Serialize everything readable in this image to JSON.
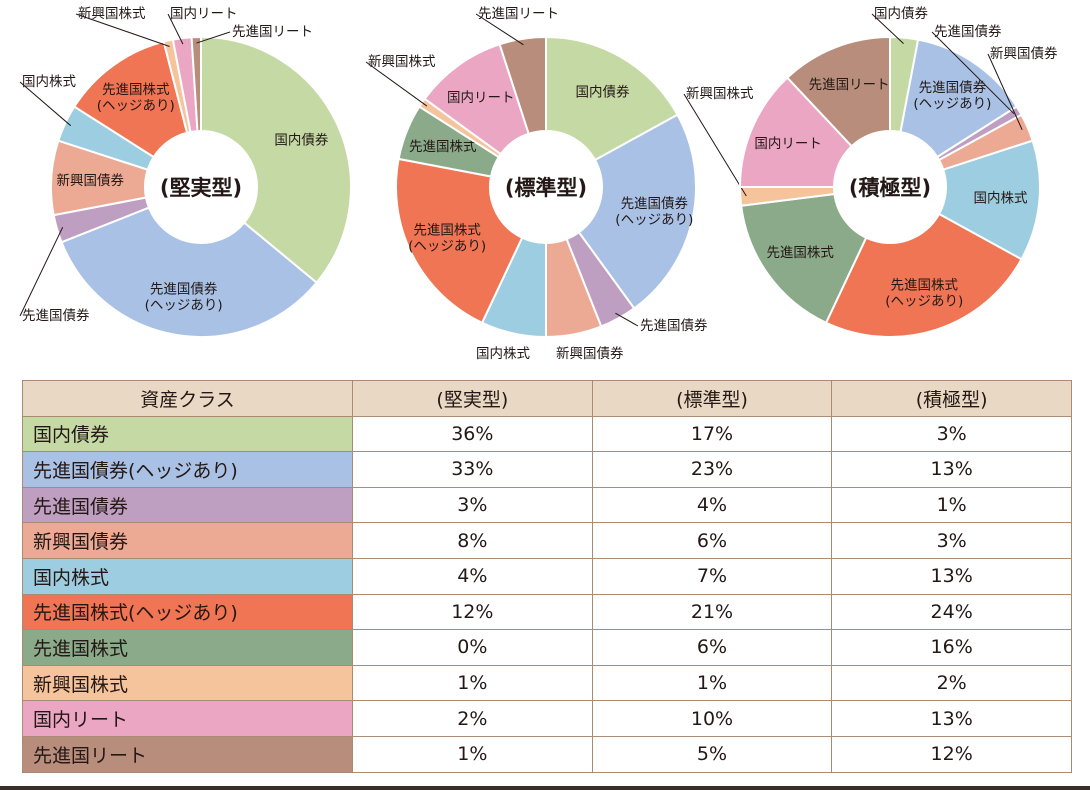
{
  "colors": {
    "国内債券": "#c5d9a4",
    "先進国債券(ヘッジあり)": "#a9c1e5",
    "先進国債券": "#bf9fc1",
    "新興国債券": "#ecaa94",
    "国内株式": "#9dcde0",
    "先進国株式(ヘッジあり)": "#f07554",
    "先進国株式": "#8aaa8a",
    "新興国株式": "#f5c49c",
    "国内リート": "#eba6c3",
    "先進国リート": "#b98d7b",
    "table_border": "#a78b72",
    "table_header_bg": "#e9d8c3"
  },
  "table": {
    "headers": [
      "資産クラス",
      "(堅実型)",
      "(標準型)",
      "(積極型)"
    ],
    "rows": [
      {
        "key": "国内債券",
        "label": "国内債券",
        "values": [
          "36%",
          "17%",
          "3%"
        ]
      },
      {
        "key": "先進国債券(ヘッジあり)",
        "label": "先進国債券(ヘッジあり)",
        "values": [
          "33%",
          "23%",
          "13%"
        ]
      },
      {
        "key": "先進国債券",
        "label": "先進国債券",
        "values": [
          "3%",
          "4%",
          "1%"
        ]
      },
      {
        "key": "新興国債券",
        "label": "新興国債券",
        "values": [
          "8%",
          "6%",
          "3%"
        ]
      },
      {
        "key": "国内株式",
        "label": "国内株式",
        "values": [
          "4%",
          "7%",
          "13%"
        ]
      },
      {
        "key": "先進国株式(ヘッジあり)",
        "label": "先進国株式(ヘッジあり)",
        "values": [
          "12%",
          "21%",
          "24%"
        ]
      },
      {
        "key": "先進国株式",
        "label": "先進国株式",
        "values": [
          "0%",
          "6%",
          "16%"
        ]
      },
      {
        "key": "新興国株式",
        "label": "新興国株式",
        "values": [
          "1%",
          "1%",
          "2%"
        ]
      },
      {
        "key": "国内リート",
        "label": "国内リート",
        "values": [
          "2%",
          "10%",
          "13%"
        ]
      },
      {
        "key": "先進国リート",
        "label": "先進国リート",
        "values": [
          "1%",
          "5%",
          "12%"
        ]
      }
    ]
  },
  "chart_data": [
    {
      "type": "pie",
      "title": "(堅実型)",
      "donut": true,
      "slices": [
        {
          "label": "国内債券",
          "value": 36
        },
        {
          "label": "先進国債券(ヘッジあり)",
          "value": 33
        },
        {
          "label": "先進国債券",
          "value": 3
        },
        {
          "label": "新興国債券",
          "value": 8
        },
        {
          "label": "国内株式",
          "value": 4
        },
        {
          "label": "先進国株式(ヘッジあり)",
          "value": 12
        },
        {
          "label": "先進国株式",
          "value": 0
        },
        {
          "label": "新興国株式",
          "value": 1
        },
        {
          "label": "国内リート",
          "value": 2
        },
        {
          "label": "先進国リート",
          "value": 1
        }
      ]
    },
    {
      "type": "pie",
      "title": "(標準型)",
      "donut": true,
      "slices": [
        {
          "label": "国内債券",
          "value": 17
        },
        {
          "label": "先進国債券(ヘッジあり)",
          "value": 23
        },
        {
          "label": "先進国債券",
          "value": 4
        },
        {
          "label": "新興国債券",
          "value": 6
        },
        {
          "label": "国内株式",
          "value": 7
        },
        {
          "label": "先進国株式(ヘッジあり)",
          "value": 21
        },
        {
          "label": "先進国株式",
          "value": 6
        },
        {
          "label": "新興国株式",
          "value": 1
        },
        {
          "label": "国内リート",
          "value": 10
        },
        {
          "label": "先進国リート",
          "value": 5
        }
      ]
    },
    {
      "type": "pie",
      "title": "(積極型)",
      "donut": true,
      "slices": [
        {
          "label": "国内債券",
          "value": 3
        },
        {
          "label": "先進国債券(ヘッジあり)",
          "value": 13
        },
        {
          "label": "先進国債券",
          "value": 1
        },
        {
          "label": "新興国債券",
          "value": 3
        },
        {
          "label": "国内株式",
          "value": 13
        },
        {
          "label": "先進国株式(ヘッジあり)",
          "value": 24
        },
        {
          "label": "先進国株式",
          "value": 16
        },
        {
          "label": "新興国株式",
          "value": 2
        },
        {
          "label": "国内リート",
          "value": 13
        },
        {
          "label": "先進国リート",
          "value": 12
        }
      ]
    }
  ]
}
